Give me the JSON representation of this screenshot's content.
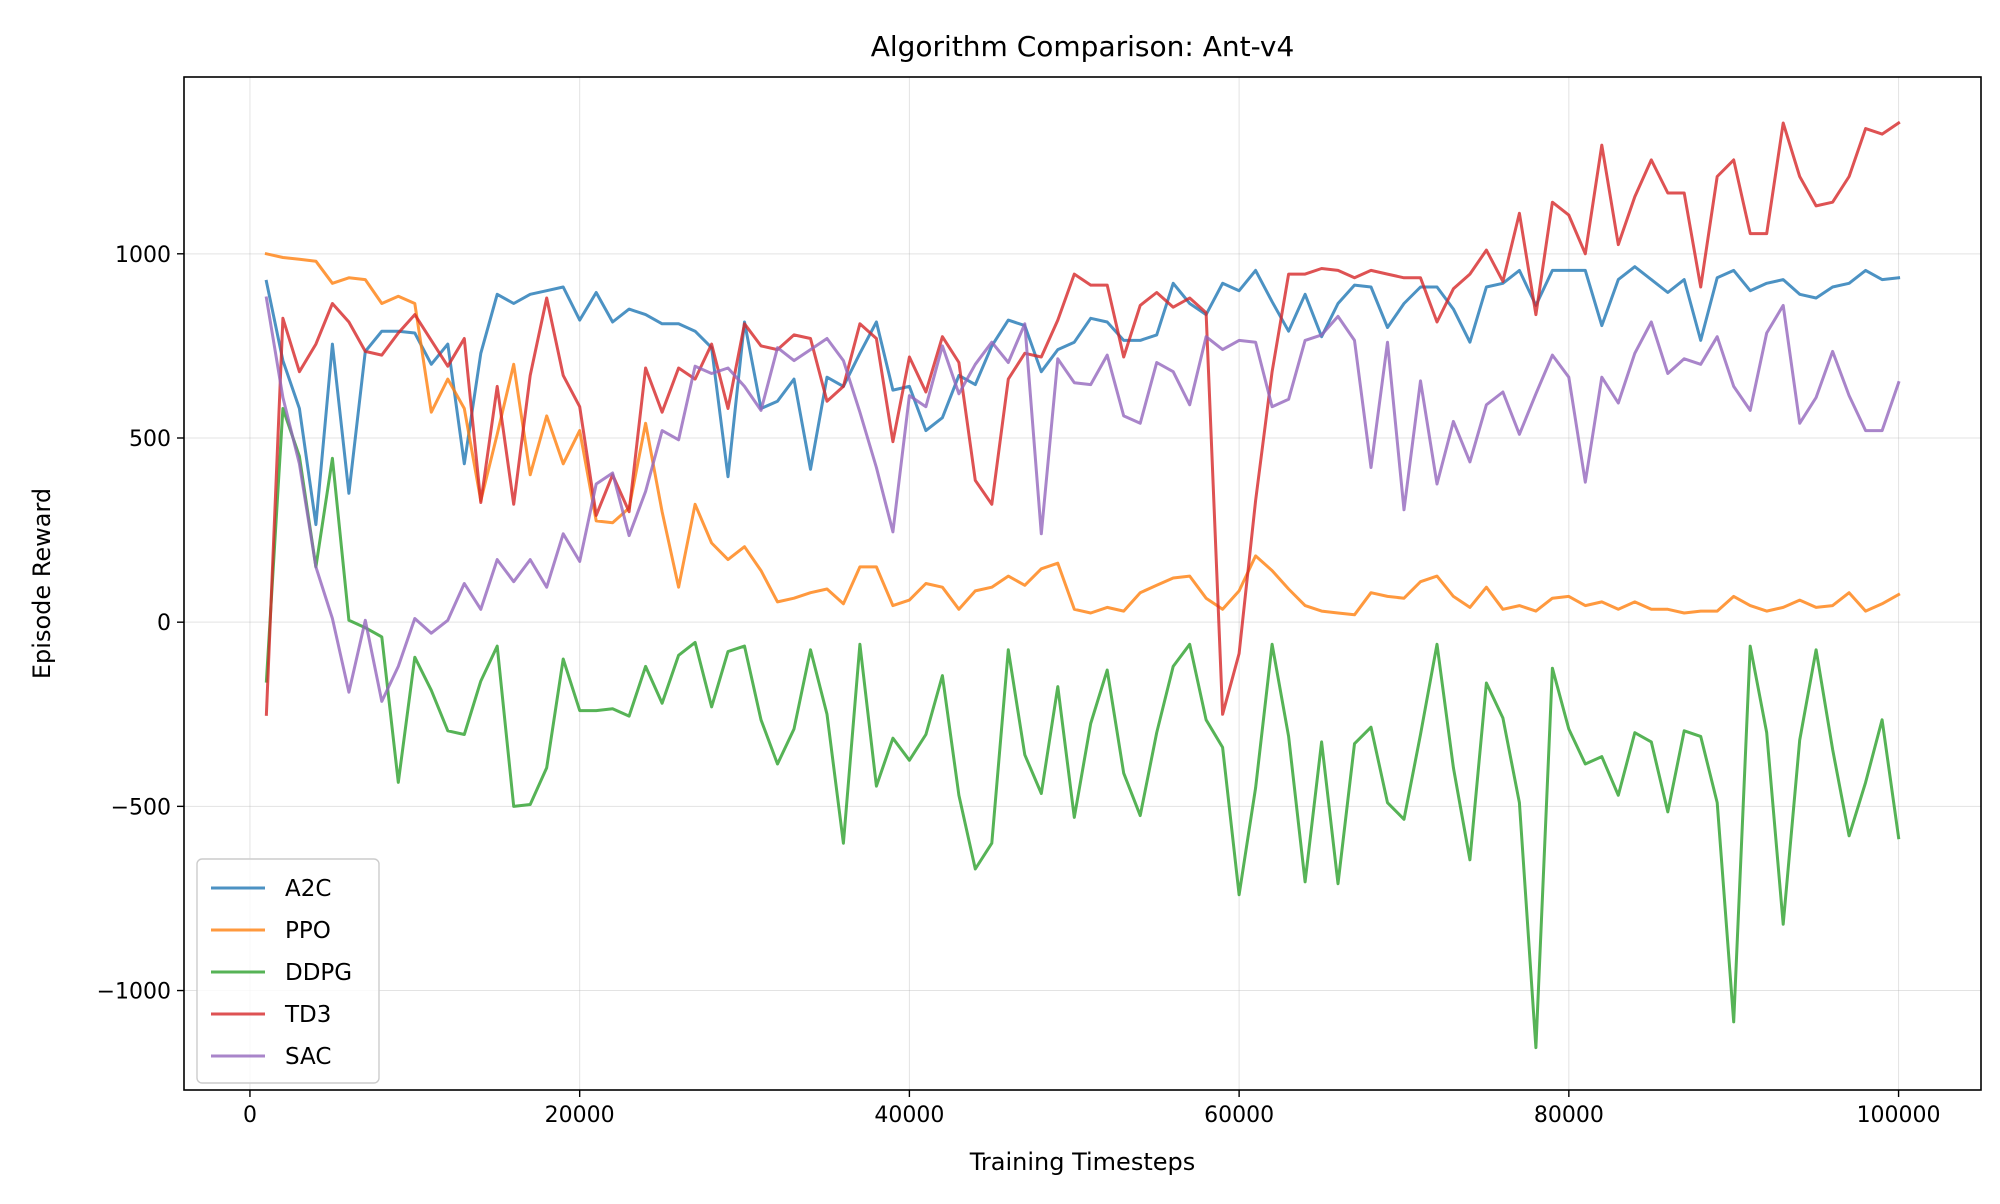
{
  "chart_data": {
    "type": "line",
    "title": "Algorithm Comparison: Ant-v4",
    "xlabel": "Training Timesteps",
    "ylabel": "Episode Reward",
    "xlim": [
      -4000,
      105000
    ],
    "ylim": [
      -1270,
      1480
    ],
    "x_ticks": [
      0,
      20000,
      40000,
      60000,
      80000,
      100000
    ],
    "y_ticks": [
      -1000,
      -500,
      0,
      500,
      1000
    ],
    "x_tick_labels": [
      "0",
      "20000",
      "40000",
      "60000",
      "80000",
      "100000"
    ],
    "y_tick_labels": [
      "−1000",
      "−500",
      "0",
      "500",
      "1000"
    ],
    "grid": true,
    "legend_position": "lower-left",
    "x_start": 1000,
    "x_step": 1000,
    "series": [
      {
        "name": "A2C",
        "color": "#1f77b4",
        "values": [
          925,
          710,
          580,
          265,
          755,
          350,
          735,
          790,
          790,
          785,
          700,
          755,
          430,
          730,
          890,
          865,
          890,
          900,
          910,
          820,
          895,
          815,
          850,
          835,
          810,
          810,
          790,
          745,
          395,
          815,
          580,
          600,
          660,
          415,
          665,
          640,
          730,
          815,
          630,
          640,
          520,
          555,
          670,
          645,
          750,
          820,
          805,
          680,
          740,
          760,
          825,
          815,
          765,
          765,
          780,
          920,
          865,
          835,
          920,
          900,
          955,
          870,
          790,
          890,
          775,
          865,
          915,
          910,
          800,
          865,
          910,
          910,
          850,
          760,
          910,
          920,
          955,
          860,
          955,
          955,
          955,
          805,
          930,
          965,
          930,
          895,
          930,
          765,
          935,
          955,
          900,
          920,
          930,
          890,
          880,
          910,
          920,
          955,
          930,
          935
        ]
      },
      {
        "name": "PPO",
        "color": "#ff7f0e",
        "values": [
          1000,
          990,
          985,
          980,
          920,
          935,
          930,
          865,
          885,
          865,
          570,
          660,
          580,
          330,
          510,
          700,
          400,
          560,
          430,
          520,
          275,
          270,
          310,
          540,
          300,
          95,
          320,
          215,
          170,
          205,
          140,
          55,
          65,
          80,
          90,
          50,
          150,
          150,
          45,
          60,
          105,
          95,
          35,
          85,
          95,
          125,
          100,
          145,
          160,
          35,
          25,
          40,
          30,
          80,
          100,
          120,
          125,
          65,
          35,
          85,
          180,
          140,
          90,
          45,
          30,
          25,
          20,
          80,
          70,
          65,
          110,
          125,
          70,
          40,
          95,
          35,
          45,
          30,
          65,
          70,
          45,
          55,
          35,
          55,
          35,
          35,
          25,
          30,
          30,
          70,
          45,
          30,
          40,
          60,
          40,
          45,
          80,
          30,
          50,
          75
        ]
      },
      {
        "name": "DDPG",
        "color": "#2ca02c",
        "values": [
          -160,
          580,
          450,
          150,
          445,
          5,
          -15,
          -40,
          -435,
          -95,
          -185,
          -295,
          -305,
          -160,
          -65,
          -500,
          -495,
          -395,
          -100,
          -240,
          -240,
          -235,
          -255,
          -120,
          -220,
          -90,
          -55,
          -230,
          -80,
          -65,
          -265,
          -385,
          -290,
          -75,
          -250,
          -600,
          -60,
          -445,
          -315,
          -375,
          -305,
          -145,
          -470,
          -670,
          -600,
          -75,
          -360,
          -465,
          -175,
          -530,
          -275,
          -130,
          -410,
          -525,
          -300,
          -120,
          -60,
          -265,
          -340,
          -740,
          -450,
          -60,
          -310,
          -705,
          -325,
          -710,
          -330,
          -285,
          -490,
          -535,
          -305,
          -60,
          -395,
          -645,
          -165,
          -260,
          -490,
          -1155,
          -125,
          -290,
          -385,
          -365,
          -470,
          -300,
          -325,
          -515,
          -295,
          -310,
          -490,
          -1085,
          -65,
          -300,
          -820,
          -320,
          -75,
          -345,
          -580,
          -435,
          -265,
          -585
        ]
      },
      {
        "name": "TD3",
        "color": "#d62728",
        "values": [
          -250,
          825,
          680,
          755,
          865,
          815,
          735,
          725,
          785,
          835,
          765,
          695,
          770,
          325,
          640,
          320,
          670,
          880,
          670,
          585,
          290,
          400,
          300,
          690,
          570,
          690,
          660,
          755,
          580,
          810,
          750,
          740,
          780,
          770,
          600,
          640,
          810,
          770,
          490,
          720,
          625,
          775,
          705,
          385,
          320,
          660,
          730,
          720,
          820,
          945,
          915,
          915,
          720,
          860,
          895,
          855,
          880,
          840,
          -250,
          -85,
          330,
          680,
          945,
          945,
          960,
          955,
          935,
          955,
          945,
          935,
          935,
          815,
          905,
          945,
          1010,
          925,
          1110,
          835,
          1140,
          1105,
          1000,
          1295,
          1025,
          1155,
          1255,
          1165,
          1165,
          910,
          1210,
          1255,
          1055,
          1055,
          1355,
          1210,
          1130,
          1140,
          1210,
          1340,
          1325,
          1355
        ]
      },
      {
        "name": "SAC",
        "color": "#9467bd",
        "values": [
          880,
          610,
          430,
          150,
          10,
          -190,
          5,
          -215,
          -120,
          10,
          -30,
          5,
          105,
          35,
          170,
          110,
          170,
          95,
          240,
          165,
          375,
          405,
          235,
          355,
          520,
          495,
          695,
          675,
          690,
          640,
          575,
          745,
          710,
          740,
          770,
          710,
          570,
          420,
          245,
          615,
          585,
          750,
          620,
          700,
          760,
          705,
          810,
          240,
          715,
          650,
          645,
          725,
          560,
          540,
          705,
          680,
          590,
          775,
          740,
          765,
          760,
          585,
          605,
          765,
          780,
          830,
          765,
          420,
          760,
          305,
          655,
          375,
          545,
          435,
          590,
          625,
          510,
          620,
          725,
          665,
          380,
          665,
          595,
          730,
          815,
          675,
          715,
          700,
          775,
          640,
          575,
          785,
          860,
          540,
          610,
          735,
          615,
          520,
          520,
          650
        ]
      }
    ]
  }
}
